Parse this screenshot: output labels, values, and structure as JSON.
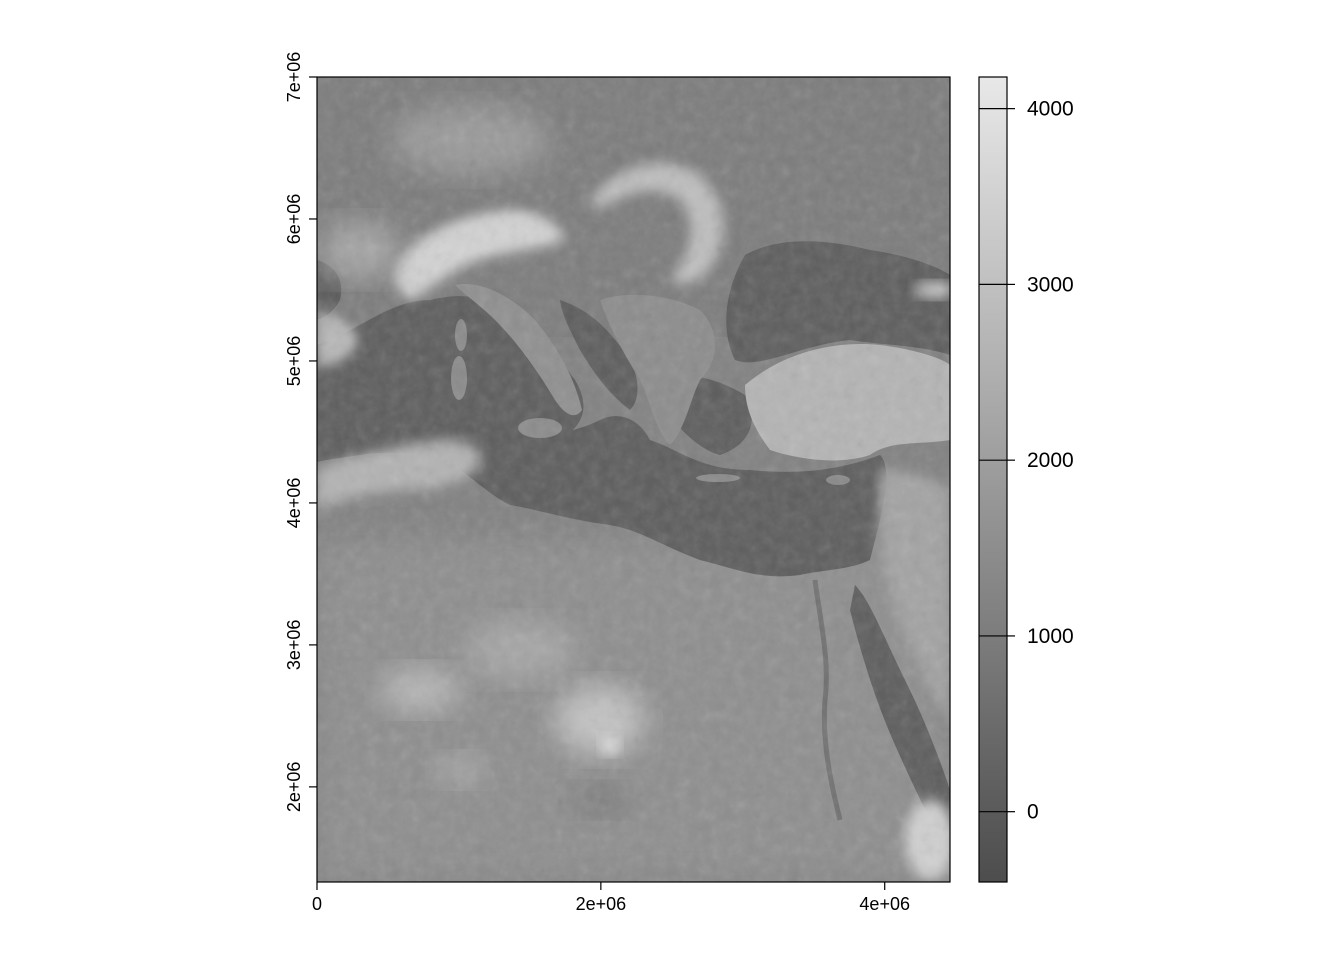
{
  "map": {
    "x_axis": {
      "ticks": [
        {
          "value": 0,
          "label": "0"
        },
        {
          "value": 2000000,
          "label": "2e+06"
        },
        {
          "value": 4000000,
          "label": "4e+06"
        }
      ]
    },
    "y_axis": {
      "ticks": [
        {
          "value": 2000000,
          "label": "2e+06"
        },
        {
          "value": 3000000,
          "label": "3e+06"
        },
        {
          "value": 4000000,
          "label": "4e+06"
        },
        {
          "value": 5000000,
          "label": "5e+06"
        },
        {
          "value": 6000000,
          "label": "6e+06"
        },
        {
          "value": 7000000,
          "label": "7e+06"
        }
      ]
    },
    "extent": {
      "xmin": 0,
      "xmax": 4460000,
      "ymin": 1330000,
      "ymax": 7000000
    },
    "colors": {
      "sea": "#5f5f5f",
      "lowland": "#7f7f7f",
      "highland": "#d6d6d6",
      "desert": "#9a9a9a"
    }
  },
  "legend": {
    "range": [
      -400,
      4180
    ],
    "ticks": [
      {
        "value": 0,
        "label": "0"
      },
      {
        "value": 1000,
        "label": "1000"
      },
      {
        "value": 2000,
        "label": "2000"
      },
      {
        "value": 3000,
        "label": "3000"
      },
      {
        "value": 4000,
        "label": "4000"
      }
    ],
    "color_low": "#4d4d4d",
    "color_high": "#e8e8e8"
  }
}
